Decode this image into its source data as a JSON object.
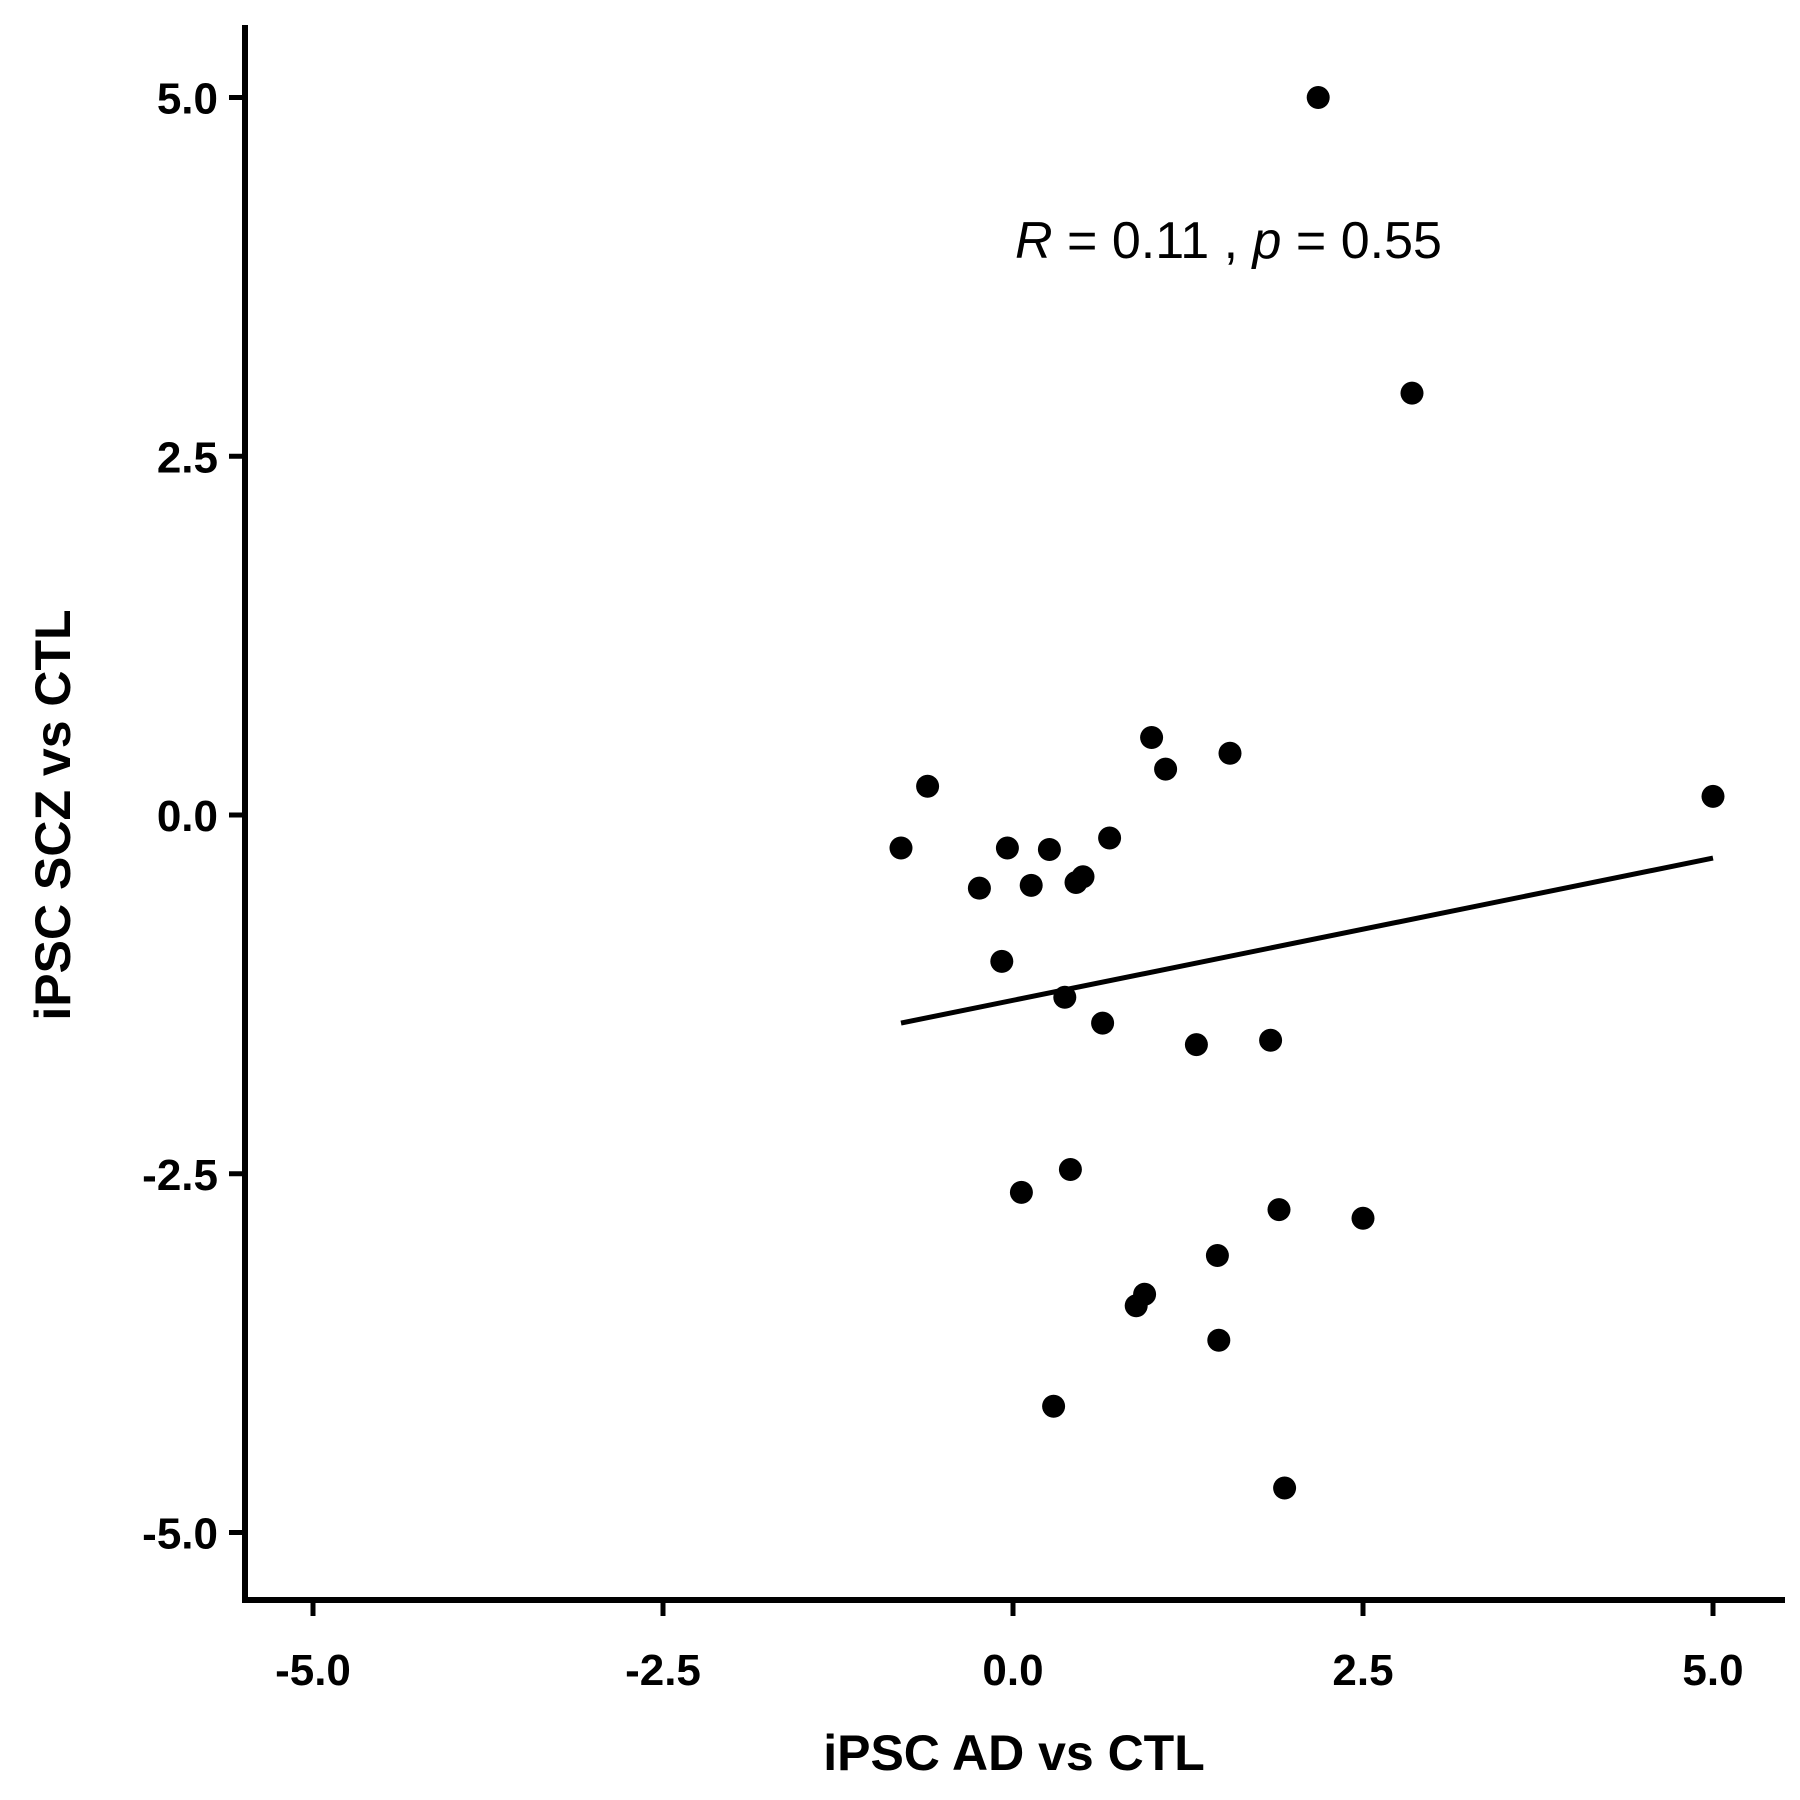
{
  "chart_data": {
    "type": "scatter",
    "xlabel": "iPSC AD vs CTL",
    "ylabel": "iPSC SCZ vs CTL",
    "xlim": [
      -5.5,
      5.5
    ],
    "ylim": [
      -5.5,
      5.5
    ],
    "x_ticks": [
      -5.0,
      -2.5,
      0.0,
      2.5,
      5.0
    ],
    "y_ticks": [
      -5.0,
      -2.5,
      0.0,
      2.5,
      5.0
    ],
    "x_tick_labels": [
      "-5.0",
      "-2.5",
      "0.0",
      "2.5",
      "5.0"
    ],
    "y_tick_labels": [
      "-5.0",
      "-2.5",
      "0.0",
      "2.5",
      "5.0"
    ],
    "annotation": {
      "r_symbol": "R",
      "r_text": " = 0.11 , ",
      "p_symbol": "p",
      "p_text": " = 0.55"
    },
    "regression_line": {
      "x_start": -0.8,
      "y_start": -1.45,
      "x_end": 5.0,
      "y_end": -0.3
    },
    "grid": false,
    "legend": "none",
    "color": "#000000",
    "points": [
      {
        "x": 2.18,
        "y": 5.0
      },
      {
        "x": 2.85,
        "y": 2.94
      },
      {
        "x": 0.99,
        "y": 0.54
      },
      {
        "x": 1.09,
        "y": 0.32
      },
      {
        "x": 1.55,
        "y": 0.43
      },
      {
        "x": -0.61,
        "y": 0.2
      },
      {
        "x": 5.0,
        "y": 0.13
      },
      {
        "x": -0.8,
        "y": -0.23
      },
      {
        "x": -0.04,
        "y": -0.23
      },
      {
        "x": 0.26,
        "y": -0.24
      },
      {
        "x": 0.69,
        "y": -0.16
      },
      {
        "x": -0.24,
        "y": -0.51
      },
      {
        "x": 0.13,
        "y": -0.49
      },
      {
        "x": 0.45,
        "y": -0.47
      },
      {
        "x": 0.5,
        "y": -0.43
      },
      {
        "x": -0.08,
        "y": -1.02
      },
      {
        "x": 0.37,
        "y": -1.27
      },
      {
        "x": 0.64,
        "y": -1.45
      },
      {
        "x": 1.31,
        "y": -1.6
      },
      {
        "x": 1.84,
        "y": -1.57
      },
      {
        "x": 0.41,
        "y": -2.47
      },
      {
        "x": 0.06,
        "y": -2.63
      },
      {
        "x": 1.9,
        "y": -2.75
      },
      {
        "x": 2.5,
        "y": -2.81
      },
      {
        "x": 1.46,
        "y": -3.07
      },
      {
        "x": 0.94,
        "y": -3.34
      },
      {
        "x": 0.88,
        "y": -3.42
      },
      {
        "x": 1.47,
        "y": -3.66
      },
      {
        "x": 0.29,
        "y": -4.12
      },
      {
        "x": 1.94,
        "y": -4.69
      }
    ]
  }
}
